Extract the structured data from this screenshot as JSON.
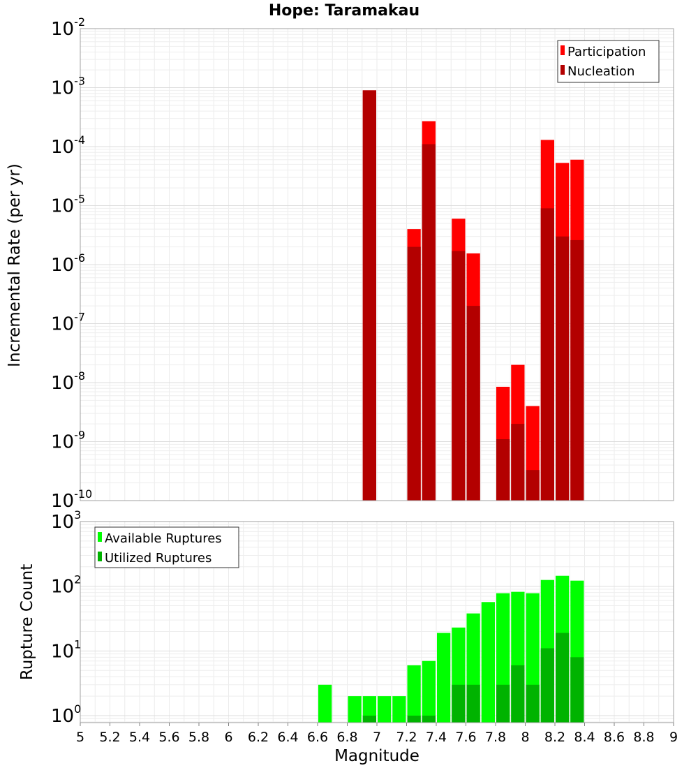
{
  "chart_data": [
    {
      "type": "bar",
      "title": "Hope: Taramakau",
      "ylabel": "Incremental Rate (per yr)",
      "xlabel": "",
      "yscale": "log",
      "ylim": [
        1e-10,
        0.01
      ],
      "xlim": [
        5,
        9
      ],
      "grid": true,
      "legend_placement": "top-right",
      "x": [
        6.95,
        7.25,
        7.35,
        7.55,
        7.65,
        7.85,
        7.95,
        8.05,
        8.15,
        8.25,
        8.35
      ],
      "series": [
        {
          "name": "Participation",
          "color": "#ff0000",
          "values": [
            0.0009,
            4e-06,
            0.00027,
            6e-06,
            1.55e-06,
            8.5e-09,
            2e-08,
            4e-09,
            0.00013,
            5.3e-05,
            6e-05
          ]
        },
        {
          "name": "Nucleation",
          "color": "#b30000",
          "values": [
            0.0009,
            2e-06,
            0.00011,
            1.7e-06,
            2e-07,
            1.1e-09,
            2e-09,
            3.3e-10,
            9e-06,
            3e-06,
            2.6e-06
          ]
        }
      ],
      "y_ticks": [
        {
          "base": "10",
          "exp": "-2"
        },
        {
          "base": "10",
          "exp": "-3"
        },
        {
          "base": "10",
          "exp": "-4"
        },
        {
          "base": "10",
          "exp": "-5"
        },
        {
          "base": "10",
          "exp": "-6"
        },
        {
          "base": "10",
          "exp": "-7"
        },
        {
          "base": "10",
          "exp": "-8"
        },
        {
          "base": "10",
          "exp": "-9"
        },
        {
          "base": "10",
          "exp": "-10"
        }
      ]
    },
    {
      "type": "bar",
      "title": "",
      "ylabel": "Rupture Count",
      "xlabel": "Magnitude",
      "yscale": "log",
      "ylim": [
        0.78,
        1000
      ],
      "xlim": [
        5,
        9
      ],
      "grid": true,
      "legend_placement": "top-left",
      "x": [
        6.65,
        6.85,
        6.95,
        7.05,
        7.15,
        7.25,
        7.35,
        7.45,
        7.55,
        7.65,
        7.75,
        7.85,
        7.95,
        8.05,
        8.15,
        8.25,
        8.35
      ],
      "series": [
        {
          "name": "Available Ruptures",
          "color": "#00ff00",
          "values": [
            3,
            2,
            2,
            2,
            2,
            6,
            7,
            19,
            23,
            38,
            57,
            78,
            82,
            78,
            125,
            145,
            122
          ]
        },
        {
          "name": "Utilized Ruptures",
          "color": "#00b300",
          "values": [
            0,
            0,
            1,
            0,
            0,
            1,
            1,
            0,
            3,
            3,
            0,
            3,
            6,
            3,
            11,
            19,
            8
          ]
        }
      ],
      "y_ticks": [
        {
          "base": "10",
          "exp": "3"
        },
        {
          "base": "10",
          "exp": "2"
        },
        {
          "base": "10",
          "exp": "1"
        },
        {
          "base": "10",
          "exp": "0"
        }
      ],
      "x_ticks": [
        "5",
        "5.2",
        "5.4",
        "5.6",
        "5.8",
        "6",
        "6.2",
        "6.4",
        "6.6",
        "6.8",
        "7",
        "7.2",
        "7.4",
        "7.6",
        "7.8",
        "8",
        "8.2",
        "8.4",
        "8.6",
        "8.8",
        "9"
      ]
    }
  ]
}
